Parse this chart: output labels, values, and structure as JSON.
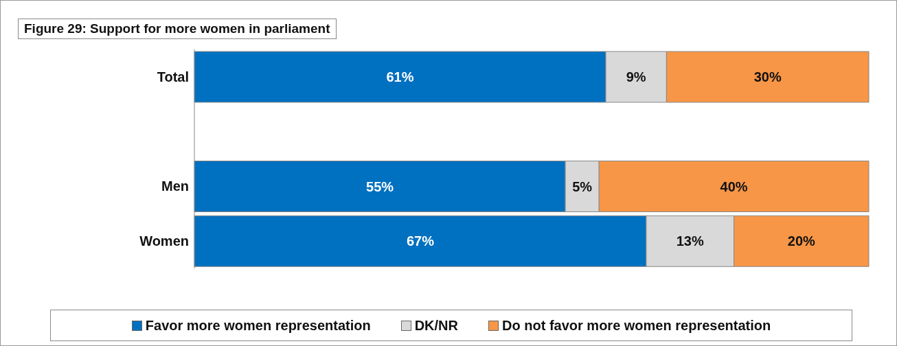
{
  "chart_data": {
    "type": "bar",
    "orientation": "horizontal",
    "stacked": true,
    "title": "Figure 29: Support for more women in parliament",
    "categories": [
      "Total",
      null,
      "Men",
      "Women"
    ],
    "legend": "bottom",
    "series": [
      {
        "name": "Favor more women representation",
        "color": "#0070c0",
        "values": [
          61,
          null,
          55,
          67
        ],
        "value_labels": [
          "61%",
          null,
          "55%",
          "67%"
        ]
      },
      {
        "name": "DK/NR",
        "color": "#d9d9d9",
        "values": [
          9,
          null,
          5,
          13
        ],
        "value_labels": [
          "9%",
          null,
          "5%",
          "13%"
        ]
      },
      {
        "name": "Do not favor more women representation",
        "color": "#f79646",
        "values": [
          30,
          null,
          40,
          20
        ],
        "value_labels": [
          "30%",
          null,
          "40%",
          "20%"
        ]
      }
    ]
  }
}
